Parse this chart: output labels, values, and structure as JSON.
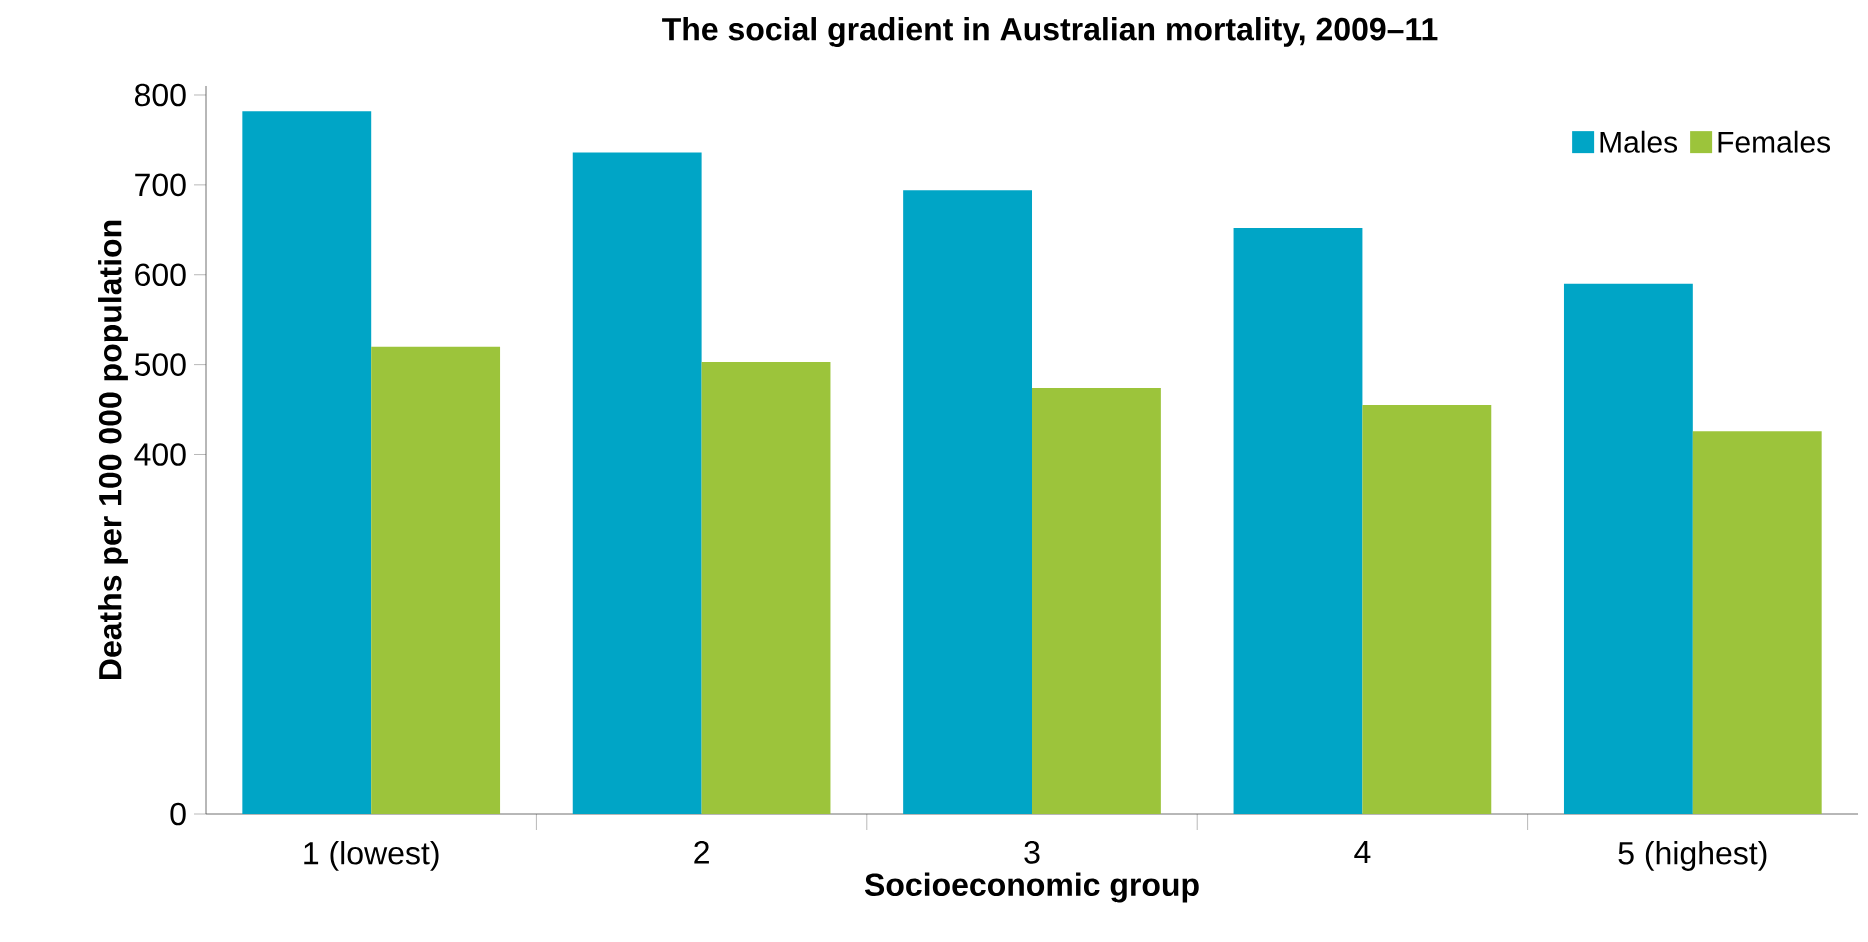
{
  "chart_data": {
    "type": "bar",
    "title": "The social gradient in Australian mortality, 2009–11",
    "xlabel": "Socioeconomic group",
    "ylabel": "Deaths per 100 000 population",
    "categories": [
      "1 (lowest)",
      "2",
      "3",
      "4",
      "5 (highest)"
    ],
    "series": [
      {
        "name": "Males",
        "color": "#00a5c6",
        "values": [
          782,
          736,
          694,
          652,
          590
        ]
      },
      {
        "name": "Females",
        "color": "#9cc43b",
        "values": [
          520,
          503,
          474,
          455,
          426
        ]
      }
    ],
    "ylim": [
      0,
      810
    ],
    "yticks": [
      0,
      400,
      500,
      600,
      700,
      800
    ],
    "legend": "top right",
    "grid": false
  }
}
